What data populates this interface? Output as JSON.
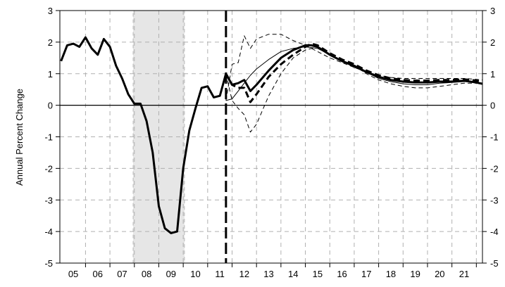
{
  "chart_data": {
    "type": "line",
    "title": "",
    "ylabel": "Annual Percent Change",
    "xlabel": "",
    "ylim": [
      -5,
      3
    ],
    "yticks": [
      3,
      2,
      1,
      0,
      -1,
      -2,
      -3,
      -4,
      -5
    ],
    "right_axis_ticks": [
      3,
      2,
      1,
      0,
      -1,
      -2,
      -3,
      -4,
      -5
    ],
    "x_range": [
      2004.45,
      2021.75
    ],
    "x_tick_labels": [
      "05",
      "06",
      "07",
      "08",
      "09",
      "10",
      "11",
      "12",
      "13",
      "14",
      "15",
      "16",
      "17",
      "18",
      "19",
      "20",
      "21"
    ],
    "x_tick_positions": [
      2005.0,
      2006.0,
      2007.0,
      2008.0,
      2009.0,
      2010.0,
      2011.0,
      2012.0,
      2013.0,
      2014.0,
      2015.0,
      2016.0,
      2017.0,
      2018.0,
      2019.0,
      2020.0,
      2021.0
    ],
    "grid": true,
    "recession_shading": [
      2007.45,
      2009.55
    ],
    "forecast_start": 2011.25,
    "series": [
      {
        "style": "thick-solid",
        "x": [
          2004.5,
          2004.75,
          2005.0,
          2005.25,
          2005.5,
          2005.75,
          2006.0,
          2006.25,
          2006.5,
          2006.75,
          2007.0,
          2007.25,
          2007.5,
          2007.75,
          2008.0,
          2008.25,
          2008.5,
          2008.75,
          2009.0,
          2009.25,
          2009.5,
          2009.75,
          2010.0,
          2010.25,
          2010.5,
          2010.75,
          2011.0,
          2011.25,
          2011.5,
          2011.75,
          2012.0,
          2012.25,
          2012.5,
          2013.0,
          2013.5,
          2014.0,
          2014.5,
          2014.75,
          2015.0,
          2015.5,
          2016.0,
          2016.5,
          2017.0,
          2017.5,
          2018.0,
          2018.5,
          2019.0,
          2019.5,
          2020.0,
          2020.5,
          2021.0,
          2021.5,
          2021.75
        ],
        "y": [
          1.4,
          1.9,
          1.95,
          1.85,
          2.15,
          1.8,
          1.6,
          2.1,
          1.85,
          1.25,
          0.85,
          0.35,
          0.05,
          0.05,
          -0.5,
          -1.5,
          -3.2,
          -3.9,
          -4.05,
          -4.0,
          -2.0,
          -0.8,
          -0.1,
          0.55,
          0.6,
          0.25,
          0.3,
          1.0,
          0.65,
          0.7,
          0.8,
          0.45,
          0.65,
          1.1,
          1.5,
          1.75,
          1.9,
          1.9,
          1.85,
          1.6,
          1.4,
          1.25,
          1.05,
          0.9,
          0.8,
          0.75,
          0.72,
          0.72,
          0.75,
          0.75,
          0.78,
          0.72,
          0.68
        ]
      },
      {
        "style": "thick-dashed",
        "x": [
          2011.25,
          2011.5,
          2011.75,
          2012.0,
          2012.25,
          2012.5,
          2013.0,
          2013.5,
          2014.0,
          2014.5,
          2014.75,
          2015.0,
          2015.5,
          2016.0,
          2016.5,
          2017.0,
          2017.5,
          2018.0,
          2018.5,
          2019.0,
          2019.5,
          2020.0,
          2020.5,
          2021.0,
          2021.5,
          2021.75
        ],
        "y": [
          1.0,
          0.65,
          0.55,
          0.55,
          0.1,
          0.35,
          0.9,
          1.3,
          1.6,
          1.85,
          1.95,
          1.9,
          1.65,
          1.45,
          1.3,
          1.1,
          0.95,
          0.85,
          0.8,
          0.78,
          0.78,
          0.8,
          0.8,
          0.82,
          0.78,
          0.75
        ]
      },
      {
        "style": "thin-solid",
        "x": [
          2011.25,
          2011.5,
          2011.75,
          2012.0,
          2012.25,
          2012.5,
          2013.0,
          2013.5,
          2014.0,
          2014.5,
          2015.0,
          2015.5,
          2016.0,
          2016.5,
          2017.0,
          2017.5,
          2018.0,
          2018.5,
          2019.0,
          2019.5,
          2020.0,
          2020.5,
          2021.0,
          2021.5,
          2021.75
        ],
        "y": [
          0.15,
          0.2,
          0.45,
          0.7,
          0.95,
          1.15,
          1.45,
          1.7,
          1.8,
          1.85,
          1.8,
          1.6,
          1.4,
          1.2,
          1.05,
          0.85,
          0.75,
          0.68,
          0.65,
          0.65,
          0.7,
          0.72,
          0.75,
          0.72,
          0.68
        ]
      },
      {
        "style": "thin-dashed-upper",
        "x": [
          2011.25,
          2011.5,
          2011.75,
          2012.0,
          2012.25,
          2012.5,
          2013.0,
          2013.5,
          2014.0,
          2014.5,
          2015.0,
          2015.5,
          2016.0,
          2016.5,
          2017.0,
          2017.5,
          2018.0,
          2018.5,
          2019.0,
          2019.5,
          2020.0,
          2020.5,
          2021.0,
          2021.5,
          2021.75
        ],
        "y": [
          0.15,
          1.3,
          1.35,
          2.2,
          1.8,
          2.1,
          2.25,
          2.25,
          2.05,
          1.9,
          1.7,
          1.5,
          1.35,
          1.2,
          1.05,
          0.95,
          0.88,
          0.85,
          0.85,
          0.85,
          0.85,
          0.85,
          0.85,
          0.82,
          0.8
        ]
      },
      {
        "style": "thin-dashed-lower",
        "x": [
          2011.25,
          2011.5,
          2011.75,
          2012.0,
          2012.25,
          2012.5,
          2013.0,
          2013.5,
          2014.0,
          2014.5,
          2015.0,
          2015.5,
          2016.0,
          2016.5,
          2017.0,
          2017.5,
          2018.0,
          2018.5,
          2019.0,
          2019.5,
          2020.0,
          2020.5,
          2021.0,
          2021.5,
          2021.75
        ],
        "y": [
          1.0,
          0.15,
          -0.1,
          -0.3,
          -0.85,
          -0.6,
          0.3,
          1.0,
          1.5,
          1.75,
          1.85,
          1.6,
          1.4,
          1.25,
          1.0,
          0.8,
          0.68,
          0.6,
          0.55,
          0.55,
          0.6,
          0.65,
          0.7,
          0.7,
          0.68
        ]
      }
    ]
  }
}
